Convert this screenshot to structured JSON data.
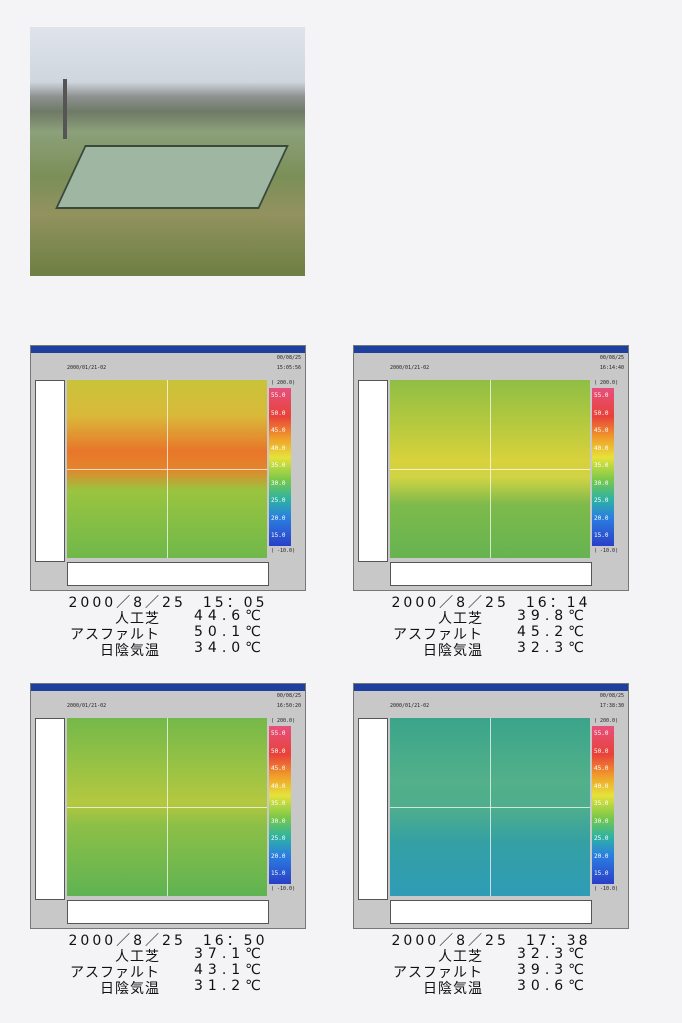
{
  "scale_labels": [
    "55.0",
    "50.0",
    "45.0",
    "40.0",
    "35.0",
    "30.0",
    "25.0",
    "20.0",
    "15.0"
  ],
  "scale_max": "( 200.0)",
  "scale_min": "( -10.0)",
  "panels": [
    {
      "window_date": "00/08/25",
      "window_time": "15:05:56",
      "file": "2000/01/21-02",
      "caption_datetime": "2000／8／25　15：05",
      "rows": [
        {
          "label": "人工芝",
          "value": "44.6℃"
        },
        {
          "label": "アスファルト",
          "value": "50.1℃"
        },
        {
          "label": "日陰気温",
          "value": "34.0℃"
        }
      ]
    },
    {
      "window_date": "00/08/25",
      "window_time": "16:14:40",
      "file": "2000/01/21-02",
      "caption_datetime": "2000／8／25　16：14",
      "rows": [
        {
          "label": "人工芝",
          "value": "39.8℃"
        },
        {
          "label": "アスファルト",
          "value": "45.2℃"
        },
        {
          "label": "日陰気温",
          "value": "32.3℃"
        }
      ]
    },
    {
      "window_date": "00/08/25",
      "window_time": "16:50:20",
      "file": "2000/01/21-02",
      "caption_datetime": "2000／8／25　16：50",
      "rows": [
        {
          "label": "人工芝",
          "value": "37.1℃"
        },
        {
          "label": "アスファルト",
          "value": "43.1℃"
        },
        {
          "label": "日陰気温",
          "value": "31.2℃"
        }
      ]
    },
    {
      "window_date": "00/08/25",
      "window_time": "17:38:30",
      "file": "2000/01/21-02",
      "caption_datetime": "2000／8／25　17：38",
      "rows": [
        {
          "label": "人工芝",
          "value": "32.3℃"
        },
        {
          "label": "アスファルト",
          "value": "39.3℃"
        },
        {
          "label": "日陰気温",
          "value": "30.6℃"
        }
      ]
    }
  ]
}
